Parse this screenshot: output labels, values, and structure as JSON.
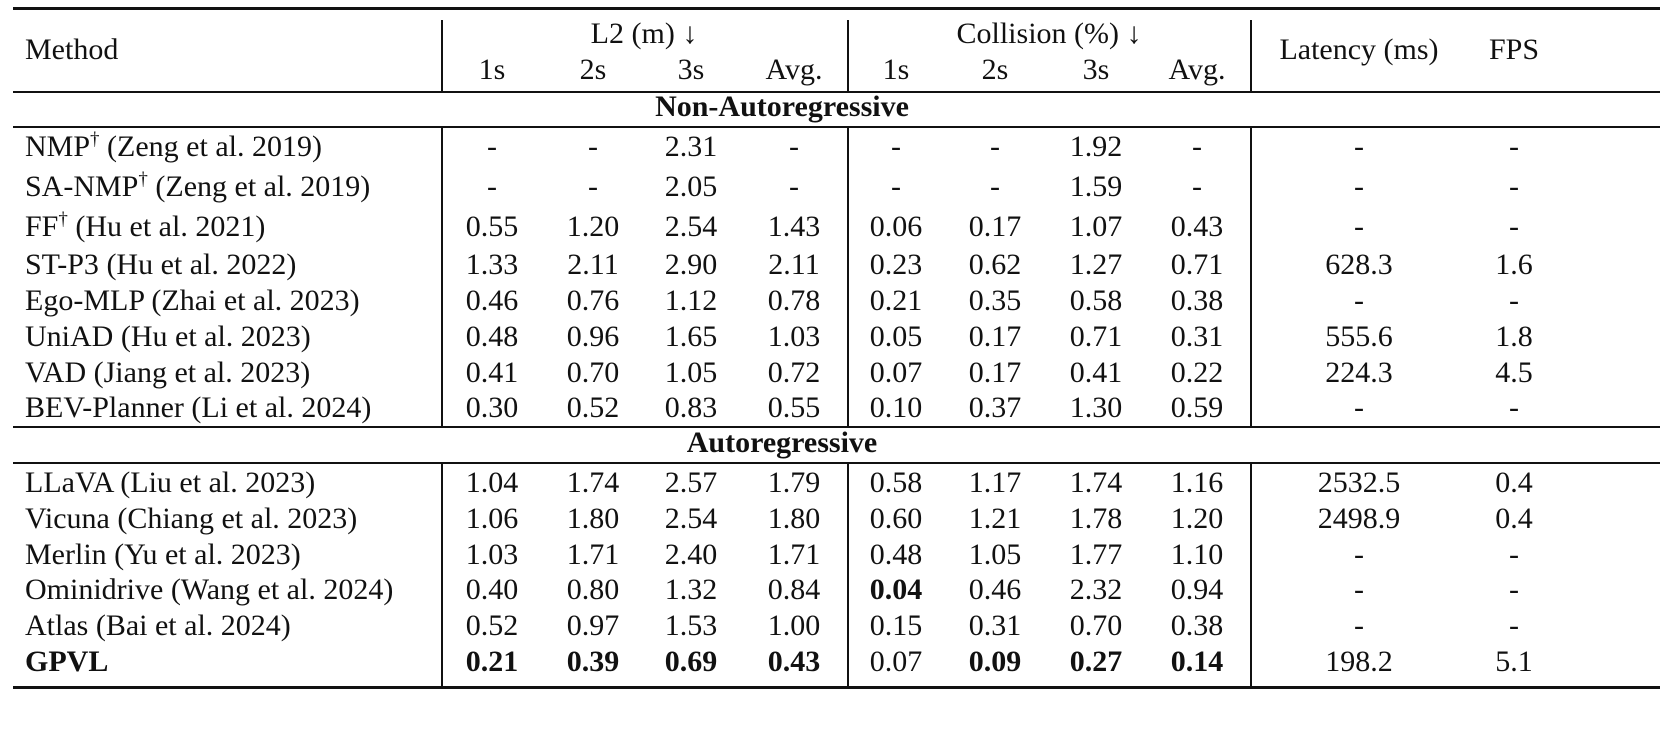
{
  "header": {
    "method": "Method",
    "l2_group": "L2 (m) ↓",
    "collision_group": "Collision (%) ↓",
    "latency": "Latency (ms)",
    "fps": "FPS",
    "sub_columns": [
      "1s",
      "2s",
      "3s",
      "Avg.",
      "1s",
      "2s",
      "3s",
      "Avg."
    ]
  },
  "sections": [
    {
      "title": "Non-Autoregressive",
      "rows": [
        {
          "name": "NMP",
          "dagger": true,
          "cite": "(Zeng et al. 2019)",
          "l2": [
            "-",
            "-",
            "2.31",
            "-"
          ],
          "collision": [
            "-",
            "-",
            "1.92",
            "-"
          ],
          "latency": "-",
          "fps": "-",
          "bold": []
        },
        {
          "name": "SA-NMP",
          "dagger": true,
          "cite": "(Zeng et al. 2019)",
          "l2": [
            "-",
            "-",
            "2.05",
            "-"
          ],
          "collision": [
            "-",
            "-",
            "1.59",
            "-"
          ],
          "latency": "-",
          "fps": "-",
          "bold": []
        },
        {
          "name": "FF",
          "dagger": true,
          "cite": "(Hu et al. 2021)",
          "l2": [
            "0.55",
            "1.20",
            "2.54",
            "1.43"
          ],
          "collision": [
            "0.06",
            "0.17",
            "1.07",
            "0.43"
          ],
          "latency": "-",
          "fps": "-",
          "bold": []
        },
        {
          "name": "ST-P3",
          "dagger": false,
          "cite": "(Hu et al. 2022)",
          "l2": [
            "1.33",
            "2.11",
            "2.90",
            "2.11"
          ],
          "collision": [
            "0.23",
            "0.62",
            "1.27",
            "0.71"
          ],
          "latency": "628.3",
          "fps": "1.6",
          "bold": []
        },
        {
          "name": "Ego-MLP",
          "dagger": false,
          "cite": "(Zhai et al. 2023)",
          "l2": [
            "0.46",
            "0.76",
            "1.12",
            "0.78"
          ],
          "collision": [
            "0.21",
            "0.35",
            "0.58",
            "0.38"
          ],
          "latency": "-",
          "fps": "-",
          "bold": []
        },
        {
          "name": "UniAD",
          "dagger": false,
          "cite": "(Hu et al. 2023)",
          "l2": [
            "0.48",
            "0.96",
            "1.65",
            "1.03"
          ],
          "collision": [
            "0.05",
            "0.17",
            "0.71",
            "0.31"
          ],
          "latency": "555.6",
          "fps": "1.8",
          "bold": []
        },
        {
          "name": "VAD",
          "dagger": false,
          "cite": "(Jiang et al. 2023)",
          "l2": [
            "0.41",
            "0.70",
            "1.05",
            "0.72"
          ],
          "collision": [
            "0.07",
            "0.17",
            "0.41",
            "0.22"
          ],
          "latency": "224.3",
          "fps": "4.5",
          "bold": []
        },
        {
          "name": "BEV-Planner",
          "dagger": false,
          "cite": "(Li et al. 2024)",
          "l2": [
            "0.30",
            "0.52",
            "0.83",
            "0.55"
          ],
          "collision": [
            "0.10",
            "0.37",
            "1.30",
            "0.59"
          ],
          "latency": "-",
          "fps": "-",
          "bold": []
        }
      ]
    },
    {
      "title": "Autoregressive",
      "rows": [
        {
          "name": "LLaVA",
          "dagger": false,
          "cite": "(Liu et al. 2023)",
          "l2": [
            "1.04",
            "1.74",
            "2.57",
            "1.79"
          ],
          "collision": [
            "0.58",
            "1.17",
            "1.74",
            "1.16"
          ],
          "latency": "2532.5",
          "fps": "0.4",
          "bold": []
        },
        {
          "name": "Vicuna",
          "dagger": false,
          "cite": "(Chiang et al. 2023)",
          "l2": [
            "1.06",
            "1.80",
            "2.54",
            "1.80"
          ],
          "collision": [
            "0.60",
            "1.21",
            "1.78",
            "1.20"
          ],
          "latency": "2498.9",
          "fps": "0.4",
          "bold": []
        },
        {
          "name": "Merlin",
          "dagger": false,
          "cite": "(Yu et al. 2023)",
          "l2": [
            "1.03",
            "1.71",
            "2.40",
            "1.71"
          ],
          "collision": [
            "0.48",
            "1.05",
            "1.77",
            "1.10"
          ],
          "latency": "-",
          "fps": "-",
          "bold": []
        },
        {
          "name": "Ominidrive",
          "dagger": false,
          "cite": "(Wang et al. 2024)",
          "l2": [
            "0.40",
            "0.80",
            "1.32",
            "0.84"
          ],
          "collision": [
            "0.04",
            "0.46",
            "2.32",
            "0.94"
          ],
          "latency": "-",
          "fps": "-",
          "bold": [
            "c0"
          ]
        },
        {
          "name": "Atlas",
          "dagger": false,
          "cite": "(Bai et al. 2024)",
          "l2": [
            "0.52",
            "0.97",
            "1.53",
            "1.00"
          ],
          "collision": [
            "0.15",
            "0.31",
            "0.70",
            "0.38"
          ],
          "latency": "-",
          "fps": "-",
          "bold": []
        },
        {
          "name": "GPVL",
          "dagger": false,
          "cite": "",
          "l2": [
            "0.21",
            "0.39",
            "0.69",
            "0.43"
          ],
          "collision": [
            "0.07",
            "0.09",
            "0.27",
            "0.14"
          ],
          "latency": "198.2",
          "fps": "5.1",
          "bold": [
            "name",
            "l0",
            "l1",
            "l2",
            "l3",
            "c1",
            "c2",
            "c3"
          ]
        }
      ]
    }
  ]
}
